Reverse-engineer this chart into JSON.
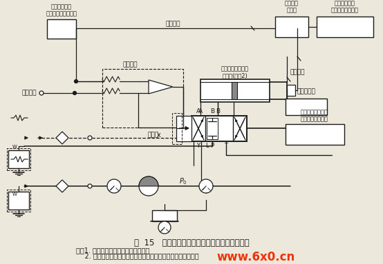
{
  "title": "图  15   四通电液比例方向阀典型的动态试验回路",
  "note1": "注：1. 本试验回路图中未表示截止阀。",
  "note2": "    2. 有必要增加低增益位置反馈回路来校正节流液压缸的位置。",
  "bg_color": "#ede8dc",
  "line_color": "#1a1a1a",
  "watermark_text": "www.6x0.cn",
  "watermark_color": "#ee3300",
  "figsize": [
    5.54,
    3.83
  ],
  "dpi": 100
}
